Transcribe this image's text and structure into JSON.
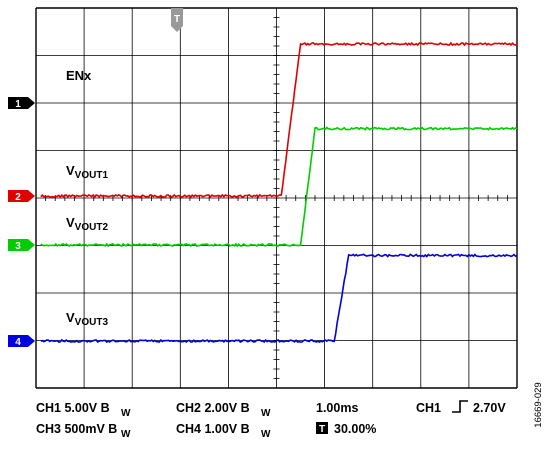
{
  "chart_data": {
    "type": "line",
    "title": "",
    "xlabel": "",
    "ylabel": "",
    "x_divisions": 10,
    "y_divisions": 8,
    "grid": true,
    "x": [
      -4.9,
      -3.0,
      -2.0,
      -1.0,
      -0.1,
      0.0,
      0.1,
      0.5,
      0.8,
      1.2,
      1.5,
      3.0,
      4.0,
      5.0
    ],
    "series": [
      {
        "name": "ENx",
        "channel_marker": "1",
        "color": "#000000",
        "values": [
          4.9,
          4.9,
          4.9,
          4.9,
          4.9,
          8.1,
          8.1,
          8.1,
          8.1,
          8.1,
          8.1,
          8.1,
          8.1,
          8.1
        ]
      },
      {
        "name": "VOUT1",
        "channel_marker": "2",
        "color": "#e00000",
        "values": [
          0.0,
          0.0,
          0.0,
          0.0,
          0.0,
          0.0,
          0.0,
          3.2,
          3.2,
          3.2,
          3.2,
          3.2,
          3.2,
          3.2
        ]
      },
      {
        "name": "VOUT2",
        "channel_marker": "3",
        "color": "#00cc00",
        "values": [
          0.0,
          0.0,
          0.0,
          0.0,
          0.0,
          0.0,
          0.0,
          0.0,
          2.45,
          2.45,
          2.45,
          2.45,
          2.45,
          2.45
        ]
      },
      {
        "name": "VOUT3",
        "channel_marker": "4",
        "color": "#0000e0",
        "values": [
          0.0,
          0.0,
          0.0,
          0.0,
          0.0,
          0.0,
          0.0,
          0.0,
          0.0,
          0.0,
          1.8,
          1.8,
          1.8,
          1.8
        ]
      }
    ],
    "trigger_marker": "T",
    "settings": {
      "row1": [
        "CH1  5.00V B",
        "CH2  2.00V B",
        "1.00ms",
        "CH1",
        "2.70V"
      ],
      "row2": [
        "CH3  500mV B",
        "CH4  1.00V B",
        "30.00%"
      ],
      "bw_sub": "W"
    },
    "figure_id": "16669-029"
  }
}
